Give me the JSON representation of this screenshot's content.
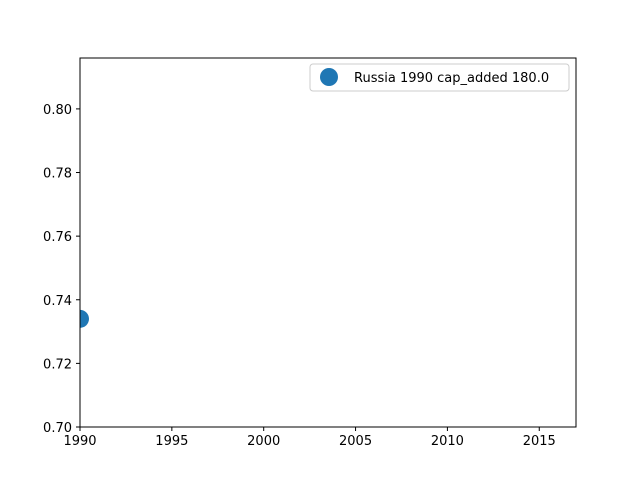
{
  "chart_data": {
    "type": "scatter",
    "title": "",
    "xlabel": "",
    "ylabel": "",
    "xlim": [
      1990,
      2017
    ],
    "ylim": [
      0.7,
      0.816
    ],
    "xticks": [
      1990,
      1995,
      2000,
      2005,
      2010,
      2015
    ],
    "yticks": [
      0.7,
      0.72,
      0.74,
      0.76,
      0.78,
      0.8
    ],
    "xtick_labels": [
      "1990",
      "1995",
      "2000",
      "2005",
      "2010",
      "2015"
    ],
    "ytick_labels": [
      "0.70",
      "0.72",
      "0.74",
      "0.76",
      "0.78",
      "0.80"
    ],
    "grid": false,
    "legend_position": "top-right",
    "series": [
      {
        "name": "Russia 1990 cap_added 180.0",
        "color": "#1f77b4",
        "points": [
          {
            "x": 1990,
            "y": 0.734
          }
        ]
      }
    ]
  }
}
